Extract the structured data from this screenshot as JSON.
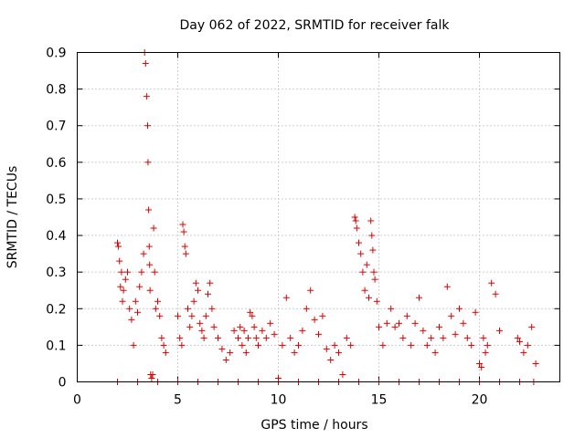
{
  "chart_data": {
    "type": "scatter",
    "title": "Day 062 of 2022, SRMTID for receiver falk",
    "xlabel": "GPS time / hours",
    "ylabel": "SRMTID / TECUs",
    "xlim": [
      0,
      24
    ],
    "ylim": [
      0,
      0.9
    ],
    "xticks": [
      0,
      5,
      10,
      15,
      20
    ],
    "xtick_labels": [
      "0",
      "5",
      "10",
      "15",
      "20"
    ],
    "yticks": [
      0,
      0.1,
      0.2,
      0.3,
      0.4,
      0.5,
      0.6,
      0.7,
      0.8,
      0.9
    ],
    "ytick_labels": [
      "0",
      "0.1",
      "0.2",
      "0.3",
      "0.4",
      "0.5",
      "0.6",
      "0.7",
      "0.8",
      "0.9"
    ],
    "grid": true,
    "marker": "+",
    "color": "#dd0000",
    "series": [
      {
        "name": "SRMTID",
        "x": [
          2.0,
          2.05,
          2.1,
          2.15,
          2.2,
          2.25,
          2.3,
          2.4,
          2.5,
          2.6,
          2.7,
          2.8,
          2.9,
          3.0,
          3.1,
          3.2,
          3.3,
          3.35,
          3.4,
          3.45,
          3.5,
          3.52,
          3.55,
          3.58,
          3.6,
          3.62,
          3.65,
          3.7,
          3.75,
          3.8,
          3.85,
          3.9,
          4.0,
          4.1,
          4.2,
          4.3,
          4.4,
          5.0,
          5.1,
          5.2,
          5.25,
          5.3,
          5.35,
          5.4,
          5.5,
          5.6,
          5.7,
          5.8,
          5.9,
          6.0,
          6.1,
          6.2,
          6.3,
          6.4,
          6.5,
          6.6,
          6.7,
          6.8,
          7.0,
          7.2,
          7.4,
          7.6,
          7.8,
          8.0,
          8.1,
          8.2,
          8.3,
          8.4,
          8.5,
          8.6,
          8.7,
          8.8,
          8.9,
          9.0,
          9.2,
          9.4,
          9.6,
          9.8,
          10.0,
          10.2,
          10.4,
          10.6,
          10.8,
          11.0,
          11.2,
          11.4,
          11.6,
          11.8,
          12.0,
          12.2,
          12.4,
          12.6,
          12.8,
          13.0,
          13.2,
          13.4,
          13.6,
          13.8,
          13.85,
          13.9,
          14.0,
          14.1,
          14.2,
          14.3,
          14.4,
          14.5,
          14.6,
          14.65,
          14.7,
          14.75,
          14.8,
          14.9,
          15.0,
          15.2,
          15.4,
          15.6,
          15.8,
          16.0,
          16.2,
          16.4,
          16.6,
          16.8,
          17.0,
          17.2,
          17.4,
          17.6,
          17.8,
          18.0,
          18.2,
          18.4,
          18.6,
          18.8,
          19.0,
          19.2,
          19.4,
          19.6,
          19.8,
          20.0,
          20.1,
          20.2,
          20.3,
          20.4,
          20.6,
          20.8,
          21.0,
          21.9,
          22.0,
          22.2,
          22.4,
          22.6,
          22.8,
          2.0,
          3.0,
          4.0,
          5.0,
          6.0,
          7.0,
          8.0,
          9.0,
          10.0,
          11.0,
          12.0,
          13.0,
          14.0,
          15.0,
          16.0,
          17.0,
          18.0,
          19.0,
          20.0,
          21.0,
          22.0,
          22.7
        ],
        "y": [
          0.38,
          0.37,
          0.33,
          0.26,
          0.3,
          0.22,
          0.25,
          0.28,
          0.3,
          0.2,
          0.17,
          0.1,
          0.22,
          0.19,
          0.26,
          0.3,
          0.35,
          0.9,
          0.87,
          0.78,
          0.7,
          0.6,
          0.47,
          0.37,
          0.32,
          0.25,
          0.02,
          0.01,
          0.02,
          0.42,
          0.3,
          0.2,
          0.22,
          0.18,
          0.12,
          0.1,
          0.08,
          0.18,
          0.12,
          0.1,
          0.43,
          0.41,
          0.37,
          0.35,
          0.2,
          0.15,
          0.18,
          0.22,
          0.27,
          0.25,
          0.16,
          0.14,
          0.12,
          0.18,
          0.24,
          0.27,
          0.2,
          0.15,
          0.12,
          0.09,
          0.06,
          0.08,
          0.14,
          0.12,
          0.15,
          0.1,
          0.14,
          0.08,
          0.12,
          0.19,
          0.18,
          0.15,
          0.12,
          0.1,
          0.14,
          0.12,
          0.16,
          0.13,
          0.01,
          0.1,
          0.23,
          0.12,
          0.08,
          0.1,
          0.14,
          0.2,
          0.25,
          0.17,
          0.13,
          0.18,
          0.09,
          0.06,
          0.1,
          0.08,
          0.02,
          0.12,
          0.1,
          0.45,
          0.44,
          0.42,
          0.38,
          0.35,
          0.3,
          0.25,
          0.32,
          0.23,
          0.44,
          0.4,
          0.36,
          0.3,
          0.28,
          0.22,
          0.15,
          0.1,
          0.16,
          0.2,
          0.15,
          0.16,
          0.12,
          0.18,
          0.1,
          0.16,
          0.23,
          0.14,
          0.1,
          0.12,
          0.08,
          0.15,
          0.12,
          0.26,
          0.18,
          0.13,
          0.2,
          0.16,
          0.12,
          0.1,
          0.19,
          0.05,
          0.04,
          0.12,
          0.08,
          0.1,
          0.27,
          0.24,
          0.14,
          0.12,
          0.11,
          0.08,
          0.1,
          0.15,
          0.05,
          0.0,
          0.0,
          0.0,
          0.0,
          0.0,
          0.0,
          0.0,
          0.0,
          0.0,
          0.0,
          0.0,
          0.0,
          0.0,
          0.0,
          0.0,
          0.0,
          0.0,
          0.0,
          0.0,
          0.0,
          0.0,
          0.0
        ]
      }
    ]
  }
}
